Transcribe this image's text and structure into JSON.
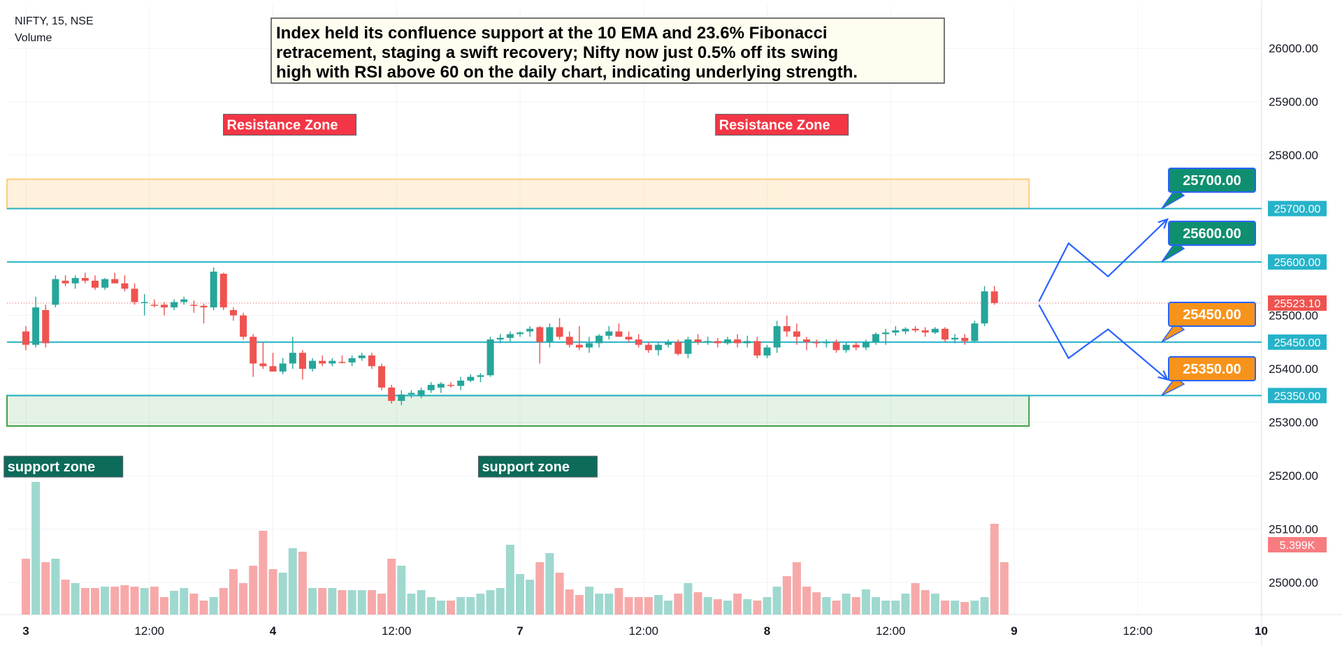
{
  "header": {
    "symbol_line": "NIFTY, 15, NSE",
    "volume_label": "Volume"
  },
  "annotation_note": {
    "lines": [
      "Index held its confluence support at the 10 EMA and 23.6% Fibonacci",
      "retracement, staging a swift recovery; Nifty now just 0.5% off its swing",
      "high with RSI above 60 on the daily chart, indicating underlying strength."
    ]
  },
  "colors": {
    "up": "#26a69a",
    "down": "#ef5350",
    "vol_up": "#9fd8cf",
    "vol_down": "#f7a9a9",
    "level_line": "#26b3c9",
    "resistance_tag": "#f23645",
    "support_tag": "#0d6b5a",
    "callout_green": "#0f8f6f",
    "callout_orange": "#f7931a",
    "callout_border": "#2962ff",
    "arrow": "#2962ff"
  },
  "chart_data": {
    "type": "candlestick",
    "symbol": "NIFTY",
    "timeframe": "15",
    "exchange": "NSE",
    "y_axis": {
      "range": [
        24940,
        26080
      ],
      "ticks": [
        "26000.00",
        "25900.00",
        "25800.00",
        "25700.00",
        "25600.00",
        "25500.00",
        "25400.00",
        "25300.00",
        "25200.00",
        "25100.00",
        "25000.00"
      ],
      "tick_values": [
        26000,
        25900,
        25800,
        25700,
        25600,
        25500,
        25400,
        25300,
        25200,
        25100,
        25000
      ]
    },
    "x_axis": {
      "ticks": [
        "3",
        "12:00",
        "4",
        "12:00",
        "7",
        "12:00",
        "8",
        "12:00",
        "9",
        "12:00",
        "10"
      ],
      "tick_index": [
        0,
        12.5,
        25,
        37.5,
        50,
        62.5,
        75,
        87.5,
        100,
        112.5,
        125
      ]
    },
    "current_price_label": "25523.10",
    "current_price": 25523.1,
    "volume_label": "5.399K",
    "levels": [
      {
        "value": 25700,
        "label": "25700.00",
        "callout": "25700.00",
        "callout_color": "green"
      },
      {
        "value": 25600,
        "label": "25600.00",
        "callout": "25600.00",
        "callout_color": "green"
      },
      {
        "value": 25450,
        "label": "25450.00",
        "callout": "25450.00",
        "callout_color": "orange"
      },
      {
        "value": 25350,
        "label": "25350.00",
        "callout": "25350.00",
        "callout_color": "orange"
      }
    ],
    "zones": [
      {
        "kind": "resistance",
        "from": 25700,
        "to": 25755,
        "end_index": 101.5
      },
      {
        "kind": "support",
        "from": 25293,
        "to": 25350,
        "end_index": 101.5
      }
    ],
    "zone_labels": [
      {
        "text": "Resistance Zone",
        "kind": "resistance",
        "index": 26.7,
        "price": 25857
      },
      {
        "text": "Resistance Zone",
        "kind": "resistance",
        "index": 76.5,
        "price": 25857
      },
      {
        "text": "support zone",
        "kind": "support",
        "index": 3.8,
        "price": 25217
      },
      {
        "text": "support zone",
        "kind": "support",
        "index": 51.8,
        "price": 25217
      }
    ],
    "projections": [
      {
        "name": "bullish",
        "points": [
          [
            102.5,
            25526
          ],
          [
            105.5,
            25635
          ],
          [
            109.5,
            25573
          ],
          [
            115.5,
            25680
          ]
        ]
      },
      {
        "name": "bearish",
        "points": [
          [
            102.5,
            25520
          ],
          [
            105.5,
            25420
          ],
          [
            109.5,
            25474
          ],
          [
            115.5,
            25380
          ]
        ]
      }
    ],
    "candles": [
      {
        "o": 25470,
        "h": 25480,
        "l": 25435,
        "c": 25445
      },
      {
        "o": 25445,
        "h": 25535,
        "l": 25440,
        "c": 25515
      },
      {
        "o": 25510,
        "h": 25520,
        "l": 25440,
        "c": 25448
      },
      {
        "o": 25520,
        "h": 25575,
        "l": 25515,
        "c": 25568
      },
      {
        "o": 25565,
        "h": 25575,
        "l": 25555,
        "c": 25560
      },
      {
        "o": 25560,
        "h": 25575,
        "l": 25550,
        "c": 25570
      },
      {
        "o": 25570,
        "h": 25580,
        "l": 25560,
        "c": 25565
      },
      {
        "o": 25565,
        "h": 25575,
        "l": 25548,
        "c": 25552
      },
      {
        "o": 25552,
        "h": 25570,
        "l": 25548,
        "c": 25568
      },
      {
        "o": 25568,
        "h": 25580,
        "l": 25560,
        "c": 25560
      },
      {
        "o": 25560,
        "h": 25575,
        "l": 25545,
        "c": 25550
      },
      {
        "o": 25550,
        "h": 25560,
        "l": 25520,
        "c": 25525
      },
      {
        "o": 25525,
        "h": 25540,
        "l": 25500,
        "c": 25525
      },
      {
        "o": 25520,
        "h": 25530,
        "l": 25515,
        "c": 25518
      },
      {
        "o": 25520,
        "h": 25525,
        "l": 25500,
        "c": 25515
      },
      {
        "o": 25515,
        "h": 25530,
        "l": 25510,
        "c": 25525
      },
      {
        "o": 25525,
        "h": 25535,
        "l": 25520,
        "c": 25530
      },
      {
        "o": 25520,
        "h": 25528,
        "l": 25505,
        "c": 25518
      },
      {
        "o": 25518,
        "h": 25522,
        "l": 25485,
        "c": 25515
      },
      {
        "o": 25515,
        "h": 25590,
        "l": 25510,
        "c": 25582
      },
      {
        "o": 25578,
        "h": 25580,
        "l": 25510,
        "c": 25515
      },
      {
        "o": 25510,
        "h": 25515,
        "l": 25490,
        "c": 25500
      },
      {
        "o": 25500,
        "h": 25505,
        "l": 25455,
        "c": 25460
      },
      {
        "o": 25460,
        "h": 25465,
        "l": 25385,
        "c": 25410
      },
      {
        "o": 25410,
        "h": 25450,
        "l": 25400,
        "c": 25405
      },
      {
        "o": 25405,
        "h": 25430,
        "l": 25395,
        "c": 25395
      },
      {
        "o": 25395,
        "h": 25420,
        "l": 25390,
        "c": 25410
      },
      {
        "o": 25410,
        "h": 25460,
        "l": 25400,
        "c": 25430
      },
      {
        "o": 25430,
        "h": 25435,
        "l": 25380,
        "c": 25400
      },
      {
        "o": 25400,
        "h": 25420,
        "l": 25395,
        "c": 25415
      },
      {
        "o": 25415,
        "h": 25425,
        "l": 25405,
        "c": 25410
      },
      {
        "o": 25410,
        "h": 25420,
        "l": 25405,
        "c": 25415
      },
      {
        "o": 25413,
        "h": 25425,
        "l": 25410,
        "c": 25412
      },
      {
        "o": 25412,
        "h": 25425,
        "l": 25405,
        "c": 25420
      },
      {
        "o": 25420,
        "h": 25430,
        "l": 25415,
        "c": 25425
      },
      {
        "o": 25425,
        "h": 25430,
        "l": 25400,
        "c": 25405
      },
      {
        "o": 25405,
        "h": 25410,
        "l": 25360,
        "c": 25365
      },
      {
        "o": 25365,
        "h": 25370,
        "l": 25335,
        "c": 25340
      },
      {
        "o": 25340,
        "h": 25360,
        "l": 25332,
        "c": 25352
      },
      {
        "o": 25352,
        "h": 25360,
        "l": 25345,
        "c": 25355
      },
      {
        "o": 25350,
        "h": 25365,
        "l": 25345,
        "c": 25360
      },
      {
        "o": 25360,
        "h": 25375,
        "l": 25355,
        "c": 25370
      },
      {
        "o": 25365,
        "h": 25375,
        "l": 25355,
        "c": 25372
      },
      {
        "o": 25370,
        "h": 25375,
        "l": 25365,
        "c": 25368
      },
      {
        "o": 25368,
        "h": 25385,
        "l": 25360,
        "c": 25378
      },
      {
        "o": 25378,
        "h": 25390,
        "l": 25375,
        "c": 25385
      },
      {
        "o": 25385,
        "h": 25392,
        "l": 25375,
        "c": 25388
      },
      {
        "o": 25388,
        "h": 25460,
        "l": 25385,
        "c": 25455
      },
      {
        "o": 25455,
        "h": 25465,
        "l": 25448,
        "c": 25458
      },
      {
        "o": 25458,
        "h": 25470,
        "l": 25450,
        "c": 25465
      },
      {
        "o": 25465,
        "h": 25470,
        "l": 25460,
        "c": 25468
      },
      {
        "o": 25470,
        "h": 25480,
        "l": 25460,
        "c": 25475
      },
      {
        "o": 25478,
        "h": 25480,
        "l": 25410,
        "c": 25450
      },
      {
        "o": 25450,
        "h": 25485,
        "l": 25440,
        "c": 25478
      },
      {
        "o": 25478,
        "h": 25495,
        "l": 25455,
        "c": 25460
      },
      {
        "o": 25460,
        "h": 25470,
        "l": 25440,
        "c": 25445
      },
      {
        "o": 25445,
        "h": 25480,
        "l": 25435,
        "c": 25440
      },
      {
        "o": 25440,
        "h": 25460,
        "l": 25430,
        "c": 25448
      },
      {
        "o": 25448,
        "h": 25465,
        "l": 25440,
        "c": 25462
      },
      {
        "o": 25462,
        "h": 25480,
        "l": 25455,
        "c": 25470
      },
      {
        "o": 25470,
        "h": 25485,
        "l": 25460,
        "c": 25460
      },
      {
        "o": 25460,
        "h": 25470,
        "l": 25450,
        "c": 25455
      },
      {
        "o": 25455,
        "h": 25465,
        "l": 25440,
        "c": 25445
      },
      {
        "o": 25445,
        "h": 25450,
        "l": 25430,
        "c": 25435
      },
      {
        "o": 25435,
        "h": 25450,
        "l": 25425,
        "c": 25445
      },
      {
        "o": 25445,
        "h": 25455,
        "l": 25440,
        "c": 25450
      },
      {
        "o": 25450,
        "h": 25455,
        "l": 25425,
        "c": 25428
      },
      {
        "o": 25428,
        "h": 25460,
        "l": 25420,
        "c": 25455
      },
      {
        "o": 25455,
        "h": 25465,
        "l": 25445,
        "c": 25450
      },
      {
        "o": 25450,
        "h": 25460,
        "l": 25445,
        "c": 25452
      },
      {
        "o": 25452,
        "h": 25458,
        "l": 25440,
        "c": 25448
      },
      {
        "o": 25448,
        "h": 25460,
        "l": 25445,
        "c": 25455
      },
      {
        "o": 25455,
        "h": 25465,
        "l": 25440,
        "c": 25448
      },
      {
        "o": 25448,
        "h": 25462,
        "l": 25440,
        "c": 25452
      },
      {
        "o": 25452,
        "h": 25460,
        "l": 25420,
        "c": 25425
      },
      {
        "o": 25425,
        "h": 25445,
        "l": 25420,
        "c": 25440
      },
      {
        "o": 25440,
        "h": 25490,
        "l": 25430,
        "c": 25480
      },
      {
        "o": 25480,
        "h": 25500,
        "l": 25460,
        "c": 25470
      },
      {
        "o": 25470,
        "h": 25485,
        "l": 25445,
        "c": 25460
      },
      {
        "o": 25455,
        "h": 25460,
        "l": 25435,
        "c": 25450
      },
      {
        "o": 25450,
        "h": 25455,
        "l": 25440,
        "c": 25448
      },
      {
        "o": 25448,
        "h": 25455,
        "l": 25440,
        "c": 25450
      },
      {
        "o": 25450,
        "h": 25455,
        "l": 25430,
        "c": 25435
      },
      {
        "o": 25435,
        "h": 25450,
        "l": 25430,
        "c": 25445
      },
      {
        "o": 25445,
        "h": 25450,
        "l": 25435,
        "c": 25440
      },
      {
        "o": 25440,
        "h": 25455,
        "l": 25435,
        "c": 25450
      },
      {
        "o": 25450,
        "h": 25468,
        "l": 25445,
        "c": 25465
      },
      {
        "o": 25465,
        "h": 25475,
        "l": 25445,
        "c": 25468
      },
      {
        "o": 25468,
        "h": 25480,
        "l": 25462,
        "c": 25472
      },
      {
        "o": 25470,
        "h": 25478,
        "l": 25465,
        "c": 25475
      },
      {
        "o": 25475,
        "h": 25480,
        "l": 25468,
        "c": 25472
      },
      {
        "o": 25472,
        "h": 25478,
        "l": 25460,
        "c": 25468
      },
      {
        "o": 25468,
        "h": 25478,
        "l": 25465,
        "c": 25475
      },
      {
        "o": 25475,
        "h": 25478,
        "l": 25450,
        "c": 25455
      },
      {
        "o": 25455,
        "h": 25465,
        "l": 25448,
        "c": 25458
      },
      {
        "o": 25458,
        "h": 25465,
        "l": 25445,
        "c": 25452
      },
      {
        "o": 25452,
        "h": 25490,
        "l": 25450,
        "c": 25485
      },
      {
        "o": 25485,
        "h": 25555,
        "l": 25480,
        "c": 25545
      },
      {
        "o": 25545,
        "h": 25555,
        "l": 25520,
        "c": 25523.1
      }
    ],
    "volume": [
      0.8,
      1.9,
      0.75,
      0.8,
      0.5,
      0.45,
      0.38,
      0.38,
      0.4,
      0.4,
      0.42,
      0.4,
      0.38,
      0.4,
      0.25,
      0.34,
      0.38,
      0.3,
      0.2,
      0.25,
      0.38,
      0.65,
      0.45,
      0.7,
      1.2,
      0.65,
      0.6,
      0.95,
      0.9,
      0.38,
      0.38,
      0.38,
      0.35,
      0.35,
      0.35,
      0.35,
      0.3,
      0.8,
      0.7,
      0.3,
      0.35,
      0.25,
      0.2,
      0.2,
      0.25,
      0.25,
      0.3,
      0.35,
      0.38,
      1.0,
      0.58,
      0.5,
      0.75,
      0.88,
      0.6,
      0.36,
      0.28,
      0.4,
      0.3,
      0.3,
      0.38,
      0.25,
      0.25,
      0.25,
      0.28,
      0.2,
      0.3,
      0.45,
      0.32,
      0.25,
      0.22,
      0.2,
      0.3,
      0.22,
      0.2,
      0.25,
      0.4,
      0.55,
      0.75,
      0.4,
      0.32,
      0.25,
      0.2,
      0.3,
      0.25,
      0.36,
      0.25,
      0.2,
      0.2,
      0.3,
      0.45,
      0.35,
      0.3,
      0.2,
      0.2,
      0.18,
      0.2,
      0.25,
      1.3,
      0.75
    ],
    "volume_scale_max": 2.2,
    "volume_unit": "K"
  }
}
